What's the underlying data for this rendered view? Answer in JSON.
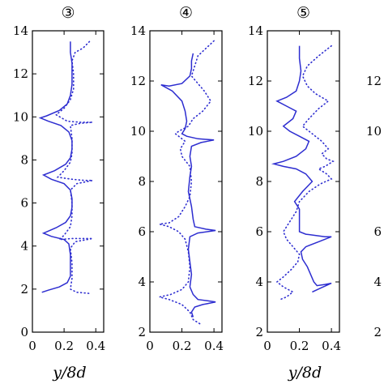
{
  "chart_data": [
    {
      "type": "line",
      "title": "③",
      "xlabel": "y/8d",
      "xlim": [
        0,
        0.45
      ],
      "ylim": [
        0,
        14
      ],
      "xticks": [
        "0",
        "0.2",
        "0.4"
      ],
      "yticks": [
        "0",
        "2",
        "4",
        "6",
        "8",
        "10",
        "12",
        "14"
      ],
      "series": [
        {
          "style": "solid",
          "color": "#2d2dd0",
          "points": [
            [
              0.24,
              13.5
            ],
            [
              0.24,
              13.0
            ],
            [
              0.25,
              12.5
            ],
            [
              0.25,
              12.0
            ],
            [
              0.25,
              11.5
            ],
            [
              0.24,
              11.0
            ],
            [
              0.22,
              10.6
            ],
            [
              0.17,
              10.3
            ],
            [
              0.09,
              10.05
            ],
            [
              0.05,
              9.95
            ],
            [
              0.1,
              9.8
            ],
            [
              0.18,
              9.6
            ],
            [
              0.23,
              9.3
            ],
            [
              0.25,
              8.9
            ],
            [
              0.25,
              8.5
            ],
            [
              0.24,
              8.1
            ],
            [
              0.21,
              7.8
            ],
            [
              0.14,
              7.5
            ],
            [
              0.07,
              7.3
            ],
            [
              0.12,
              7.1
            ],
            [
              0.2,
              6.9
            ],
            [
              0.24,
              6.6
            ],
            [
              0.25,
              6.2
            ],
            [
              0.25,
              5.8
            ],
            [
              0.24,
              5.4
            ],
            [
              0.21,
              5.1
            ],
            [
              0.15,
              4.85
            ],
            [
              0.07,
              4.6
            ],
            [
              0.12,
              4.45
            ],
            [
              0.2,
              4.3
            ],
            [
              0.23,
              4.1
            ],
            [
              0.24,
              3.6
            ],
            [
              0.24,
              3.0
            ],
            [
              0.24,
              2.6
            ],
            [
              0.22,
              2.3
            ],
            [
              0.17,
              2.1
            ],
            [
              0.1,
              1.95
            ],
            [
              0.06,
              1.85
            ]
          ]
        },
        {
          "style": "dotted",
          "color": "#2d2dd0",
          "points": [
            [
              0.36,
              13.5
            ],
            [
              0.32,
              13.2
            ],
            [
              0.27,
              13.0
            ],
            [
              0.25,
              12.6
            ],
            [
              0.26,
              12.0
            ],
            [
              0.26,
              11.3
            ],
            [
              0.24,
              10.8
            ],
            [
              0.2,
              10.4
            ],
            [
              0.15,
              10.1
            ],
            [
              0.22,
              9.8
            ],
            [
              0.3,
              9.75
            ],
            [
              0.38,
              9.75
            ],
            [
              0.3,
              9.7
            ],
            [
              0.24,
              9.6
            ],
            [
              0.25,
              9.0
            ],
            [
              0.25,
              8.3
            ],
            [
              0.24,
              7.9
            ],
            [
              0.2,
              7.5
            ],
            [
              0.16,
              7.2
            ],
            [
              0.25,
              7.1
            ],
            [
              0.33,
              7.05
            ],
            [
              0.38,
              7.05
            ],
            [
              0.28,
              6.9
            ],
            [
              0.24,
              6.6
            ],
            [
              0.25,
              6.0
            ],
            [
              0.25,
              5.4
            ],
            [
              0.24,
              4.9
            ],
            [
              0.2,
              4.5
            ],
            [
              0.17,
              4.3
            ],
            [
              0.25,
              4.35
            ],
            [
              0.32,
              4.35
            ],
            [
              0.38,
              4.35
            ],
            [
              0.27,
              4.2
            ],
            [
              0.24,
              3.9
            ],
            [
              0.25,
              3.2
            ],
            [
              0.25,
              2.5
            ],
            [
              0.24,
              2.0
            ],
            [
              0.28,
              1.85
            ],
            [
              0.36,
              1.8
            ]
          ]
        }
      ]
    },
    {
      "type": "line",
      "title": "④",
      "xlabel": "",
      "xlim": [
        0,
        0.45
      ],
      "ylim": [
        2,
        14
      ],
      "xticks": [
        "0",
        "0.2",
        "0.4"
      ],
      "yticks": [
        "2",
        "4",
        "6",
        "8",
        "10",
        "12",
        "14"
      ],
      "series": [
        {
          "style": "solid",
          "color": "#2d2dd0",
          "points": [
            [
              0.27,
              13.1
            ],
            [
              0.26,
              12.8
            ],
            [
              0.26,
              12.5
            ],
            [
              0.25,
              12.2
            ],
            [
              0.2,
              11.9
            ],
            [
              0.12,
              11.8
            ],
            [
              0.07,
              11.85
            ],
            [
              0.14,
              11.6
            ],
            [
              0.2,
              11.2
            ],
            [
              0.22,
              10.8
            ],
            [
              0.23,
              10.4
            ],
            [
              0.22,
              10.1
            ],
            [
              0.2,
              9.9
            ],
            [
              0.23,
              9.8
            ],
            [
              0.3,
              9.7
            ],
            [
              0.4,
              9.65
            ],
            [
              0.32,
              9.55
            ],
            [
              0.26,
              9.4
            ],
            [
              0.25,
              9.0
            ],
            [
              0.26,
              8.6
            ],
            [
              0.25,
              8.2
            ],
            [
              0.24,
              7.6
            ],
            [
              0.26,
              7.0
            ],
            [
              0.27,
              6.5
            ],
            [
              0.28,
              6.2
            ],
            [
              0.35,
              6.1
            ],
            [
              0.41,
              6.05
            ],
            [
              0.3,
              5.95
            ],
            [
              0.25,
              5.8
            ],
            [
              0.24,
              5.3
            ],
            [
              0.25,
              4.8
            ],
            [
              0.26,
              4.3
            ],
            [
              0.25,
              3.8
            ],
            [
              0.27,
              3.5
            ],
            [
              0.3,
              3.3
            ],
            [
              0.36,
              3.25
            ],
            [
              0.41,
              3.2
            ],
            [
              0.33,
              3.1
            ],
            [
              0.28,
              3.0
            ],
            [
              0.26,
              2.8
            ],
            [
              0.27,
              2.6
            ]
          ]
        },
        {
          "style": "dotted",
          "color": "#2d2dd0",
          "points": [
            [
              0.4,
              13.6
            ],
            [
              0.35,
              13.3
            ],
            [
              0.3,
              13.0
            ],
            [
              0.28,
              12.6
            ],
            [
              0.26,
              12.2
            ],
            [
              0.3,
              11.9
            ],
            [
              0.34,
              11.6
            ],
            [
              0.38,
              11.2
            ],
            [
              0.33,
              10.8
            ],
            [
              0.27,
              10.5
            ],
            [
              0.24,
              10.2
            ],
            [
              0.18,
              10.0
            ],
            [
              0.16,
              9.9
            ],
            [
              0.22,
              9.6
            ],
            [
              0.19,
              9.3
            ],
            [
              0.2,
              9.0
            ],
            [
              0.25,
              8.6
            ],
            [
              0.26,
              8.0
            ],
            [
              0.25,
              7.4
            ],
            [
              0.22,
              7.0
            ],
            [
              0.18,
              6.6
            ],
            [
              0.12,
              6.35
            ],
            [
              0.06,
              6.3
            ],
            [
              0.12,
              6.2
            ],
            [
              0.18,
              6.0
            ],
            [
              0.22,
              5.7
            ],
            [
              0.24,
              5.2
            ],
            [
              0.25,
              4.6
            ],
            [
              0.24,
              4.0
            ],
            [
              0.2,
              3.7
            ],
            [
              0.13,
              3.5
            ],
            [
              0.06,
              3.4
            ],
            [
              0.12,
              3.3
            ],
            [
              0.2,
              3.1
            ],
            [
              0.25,
              2.8
            ],
            [
              0.27,
              2.5
            ],
            [
              0.32,
              2.3
            ]
          ]
        }
      ]
    },
    {
      "type": "line",
      "title": "⑤",
      "xlabel": "y/8d",
      "xlim": [
        0,
        0.45
      ],
      "ylim": [
        2,
        14
      ],
      "xticks": [
        "0",
        "0.2",
        "0.4"
      ],
      "yticks": [
        "2",
        "4",
        "6",
        "8",
        "10",
        "12",
        "14"
      ],
      "series": [
        {
          "style": "solid",
          "color": "#2d2dd0",
          "points": [
            [
              0.2,
              13.4
            ],
            [
              0.2,
              12.9
            ],
            [
              0.21,
              12.4
            ],
            [
              0.2,
              12.0
            ],
            [
              0.18,
              11.6
            ],
            [
              0.12,
              11.35
            ],
            [
              0.06,
              11.2
            ],
            [
              0.12,
              11.0
            ],
            [
              0.18,
              10.8
            ],
            [
              0.16,
              10.5
            ],
            [
              0.1,
              10.2
            ],
            [
              0.14,
              10.0
            ],
            [
              0.2,
              9.8
            ],
            [
              0.26,
              9.6
            ],
            [
              0.24,
              9.3
            ],
            [
              0.18,
              9.0
            ],
            [
              0.1,
              8.8
            ],
            [
              0.04,
              8.7
            ],
            [
              0.1,
              8.6
            ],
            [
              0.18,
              8.5
            ],
            [
              0.24,
              8.3
            ],
            [
              0.28,
              8.0
            ],
            [
              0.22,
              7.6
            ],
            [
              0.17,
              7.2
            ],
            [
              0.2,
              6.9
            ],
            [
              0.2,
              6.3
            ],
            [
              0.2,
              6.0
            ],
            [
              0.24,
              5.9
            ],
            [
              0.3,
              5.85
            ],
            [
              0.36,
              5.8
            ],
            [
              0.4,
              5.8
            ],
            [
              0.32,
              5.6
            ],
            [
              0.24,
              5.4
            ],
            [
              0.21,
              5.2
            ],
            [
              0.22,
              4.9
            ],
            [
              0.25,
              4.6
            ],
            [
              0.27,
              4.3
            ],
            [
              0.29,
              4.0
            ],
            [
              0.31,
              3.85
            ],
            [
              0.36,
              3.9
            ],
            [
              0.4,
              3.95
            ],
            [
              0.33,
              3.75
            ],
            [
              0.28,
              3.6
            ]
          ]
        },
        {
          "style": "dotted",
          "color": "#2d2dd0",
          "points": [
            [
              0.4,
              13.4
            ],
            [
              0.32,
              13.0
            ],
            [
              0.25,
              12.6
            ],
            [
              0.22,
              12.2
            ],
            [
              0.25,
              11.8
            ],
            [
              0.3,
              11.5
            ],
            [
              0.38,
              11.2
            ],
            [
              0.32,
              10.9
            ],
            [
              0.26,
              10.5
            ],
            [
              0.22,
              10.2
            ],
            [
              0.28,
              9.9
            ],
            [
              0.34,
              9.6
            ],
            [
              0.38,
              9.3
            ],
            [
              0.34,
              9.1
            ],
            [
              0.37,
              8.9
            ],
            [
              0.41,
              8.8
            ],
            [
              0.36,
              8.6
            ],
            [
              0.32,
              8.5
            ],
            [
              0.37,
              8.3
            ],
            [
              0.4,
              8.1
            ],
            [
              0.33,
              7.9
            ],
            [
              0.26,
              7.6
            ],
            [
              0.2,
              7.2
            ],
            [
              0.18,
              6.8
            ],
            [
              0.14,
              6.4
            ],
            [
              0.1,
              6.0
            ],
            [
              0.12,
              5.7
            ],
            [
              0.16,
              5.4
            ],
            [
              0.2,
              5.1
            ],
            [
              0.19,
              4.8
            ],
            [
              0.15,
              4.5
            ],
            [
              0.1,
              4.2
            ],
            [
              0.06,
              4.0
            ],
            [
              0.1,
              3.8
            ],
            [
              0.16,
              3.6
            ],
            [
              0.12,
              3.4
            ],
            [
              0.08,
              3.3
            ]
          ]
        }
      ]
    }
  ],
  "partial_panel": {
    "yticks": [
      "12",
      "10",
      "6",
      "4",
      "2"
    ]
  }
}
